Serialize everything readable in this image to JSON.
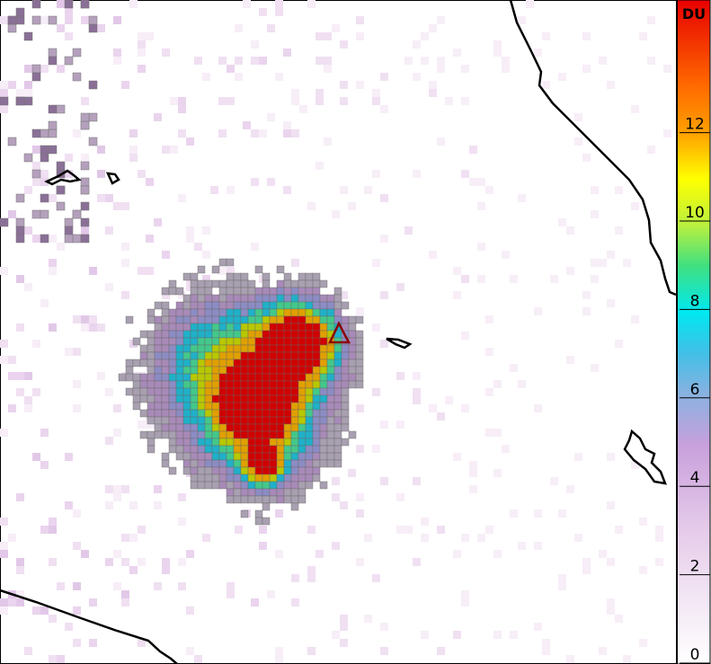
{
  "colorbar": {
    "label": "DU",
    "range": [
      0,
      15
    ],
    "ticks": [
      0,
      2,
      4,
      6,
      8,
      10,
      12
    ]
  }
}
